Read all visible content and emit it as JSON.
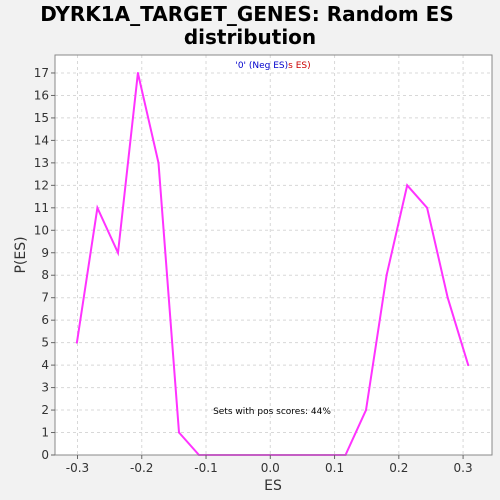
{
  "chart_data": {
    "type": "line",
    "title_line1": "DYRK1A_TARGET_GENES: Random ES",
    "title_line2": "distribution",
    "xlabel": "ES",
    "ylabel": "P(ES)",
    "xlim": [
      -0.335,
      0.345
    ],
    "ylim": [
      0,
      17.8
    ],
    "x_ticks": [
      -0.3,
      -0.2,
      -0.1,
      0.0,
      0.1,
      0.2,
      0.3
    ],
    "x_tick_labels": [
      "-0.3",
      "-0.2",
      "-0.1",
      "0.0",
      "0.1",
      "0.2",
      "0.3"
    ],
    "y_ticks": [
      0,
      1,
      2,
      3,
      4,
      5,
      6,
      7,
      8,
      9,
      10,
      11,
      12,
      13,
      14,
      15,
      16,
      17
    ],
    "y_tick_labels": [
      "0",
      "1",
      "2",
      "3",
      "4",
      "5",
      "6",
      "7",
      "8",
      "9",
      "10",
      "11",
      "12",
      "13",
      "14",
      "15",
      "16",
      "17"
    ],
    "grid": true,
    "series": [
      {
        "color": "#ff33ff",
        "x": [
          -0.301,
          -0.269,
          -0.237,
          -0.206,
          -0.174,
          -0.142,
          -0.111,
          -0.079,
          -0.047,
          -0.016,
          0.016,
          0.048,
          0.085,
          0.117,
          0.149,
          0.181,
          0.213,
          0.244,
          0.276,
          0.308
        ],
        "y": [
          5,
          11,
          9,
          17,
          13,
          1,
          0,
          0,
          0,
          0,
          0,
          0,
          0,
          0,
          2,
          8,
          12,
          11,
          7,
          4
        ]
      }
    ],
    "legend": {
      "position": "top-center",
      "part1": "'0' (Neg ES)",
      "part1_color": "#0000cc",
      "part2": "s ES)",
      "part2_color": "#cc0000"
    },
    "annotation": "Sets with pos scores: 44%"
  }
}
